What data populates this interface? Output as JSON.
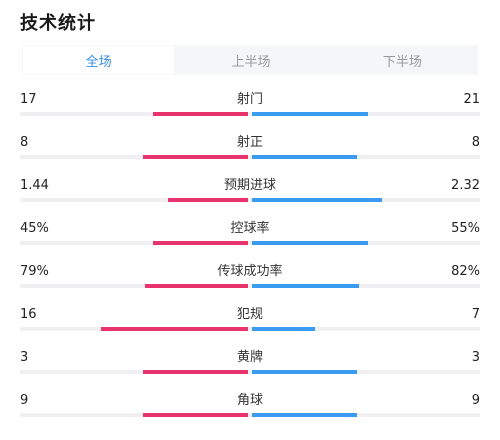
{
  "header": {
    "title": "技术统计"
  },
  "tabs": [
    {
      "label": "全场",
      "active": true
    },
    {
      "label": "上半场",
      "active": false
    },
    {
      "label": "下半场",
      "active": false
    }
  ],
  "colors": {
    "home": "#e8336d",
    "away": "#3a9cf0",
    "tab_active": "#3a8de0"
  },
  "stats": [
    {
      "label": "射门",
      "home": "17",
      "away": "21",
      "home_share": 0.45,
      "away_share": 0.55
    },
    {
      "label": "射正",
      "home": "8",
      "away": "8",
      "home_share": 0.5,
      "away_share": 0.5
    },
    {
      "label": "预期进球",
      "home": "1.44",
      "away": "2.32",
      "home_share": 0.38,
      "away_share": 0.62
    },
    {
      "label": "控球率",
      "home": "45%",
      "away": "55%",
      "home_share": 0.45,
      "away_share": 0.55
    },
    {
      "label": "传球成功率",
      "home": "79%",
      "away": "82%",
      "home_share": 0.49,
      "away_share": 0.51
    },
    {
      "label": "犯规",
      "home": "16",
      "away": "7",
      "home_share": 0.7,
      "away_share": 0.3
    },
    {
      "label": "黄牌",
      "home": "3",
      "away": "3",
      "home_share": 0.5,
      "away_share": 0.5
    },
    {
      "label": "角球",
      "home": "9",
      "away": "9",
      "home_share": 0.5,
      "away_share": 0.5
    }
  ]
}
